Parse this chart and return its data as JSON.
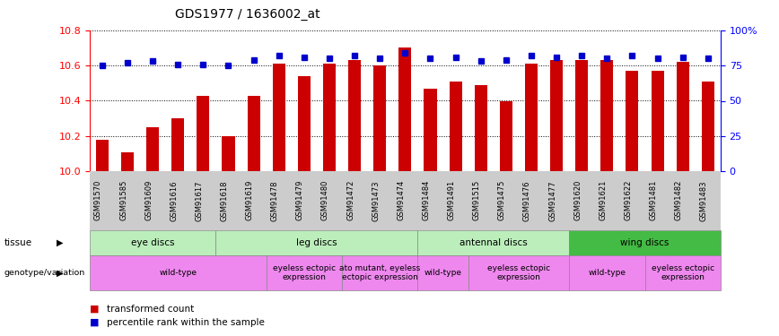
{
  "title": "GDS1977 / 1636002_at",
  "samples": [
    "GSM91570",
    "GSM91585",
    "GSM91609",
    "GSM91616",
    "GSM91617",
    "GSM91618",
    "GSM91619",
    "GSM91478",
    "GSM91479",
    "GSM91480",
    "GSM91472",
    "GSM91473",
    "GSM91474",
    "GSM91484",
    "GSM91491",
    "GSM91515",
    "GSM91475",
    "GSM91476",
    "GSM91477",
    "GSM91620",
    "GSM91621",
    "GSM91622",
    "GSM91481",
    "GSM91482",
    "GSM91483"
  ],
  "bar_values": [
    10.18,
    10.11,
    10.25,
    10.3,
    10.43,
    10.2,
    10.43,
    10.61,
    10.54,
    10.61,
    10.63,
    10.6,
    10.7,
    10.47,
    10.51,
    10.49,
    10.4,
    10.61,
    10.63,
    10.63,
    10.63,
    10.57,
    10.57,
    10.62,
    10.51
  ],
  "dot_values": [
    75,
    77,
    78,
    76,
    76,
    75,
    79,
    82,
    81,
    80,
    82,
    80,
    84,
    80,
    81,
    78,
    79,
    82,
    81,
    82,
    80,
    82,
    80,
    81,
    80
  ],
  "ylim_left": [
    10.0,
    10.8
  ],
  "ylim_right": [
    0,
    100
  ],
  "bar_color": "#cc0000",
  "dot_color": "#0000cc",
  "grid_ticks_left": [
    10.0,
    10.2,
    10.4,
    10.6,
    10.8
  ],
  "grid_ticks_right": [
    0,
    25,
    50,
    75,
    100
  ],
  "right_tick_labels": [
    "0",
    "25",
    "50",
    "75",
    "100%"
  ],
  "tissue_groups": [
    {
      "label": "eye discs",
      "start": 0,
      "end": 4,
      "color": "#bbeebb"
    },
    {
      "label": "leg discs",
      "start": 5,
      "end": 12,
      "color": "#bbeebb"
    },
    {
      "label": "antennal discs",
      "start": 13,
      "end": 18,
      "color": "#bbeebb"
    },
    {
      "label": "wing discs",
      "start": 19,
      "end": 24,
      "color": "#44bb44"
    }
  ],
  "genotype_groups": [
    {
      "label": "wild-type",
      "start": 0,
      "end": 6,
      "color": "#ee88ee"
    },
    {
      "label": "eyeless ectopic\nexpression",
      "start": 7,
      "end": 9,
      "color": "#ee88ee"
    },
    {
      "label": "ato mutant, eyeless\nectopic expression",
      "start": 10,
      "end": 12,
      "color": "#ee88ee"
    },
    {
      "label": "wild-type",
      "start": 13,
      "end": 14,
      "color": "#ee88ee"
    },
    {
      "label": "eyeless ectopic\nexpression",
      "start": 15,
      "end": 18,
      "color": "#ee88ee"
    },
    {
      "label": "wild-type",
      "start": 19,
      "end": 21,
      "color": "#ee88ee"
    },
    {
      "label": "eyeless ectopic\nexpression",
      "start": 22,
      "end": 24,
      "color": "#ee88ee"
    }
  ],
  "plot_bg": "#ffffff",
  "ticklabel_bg": "#cccccc"
}
